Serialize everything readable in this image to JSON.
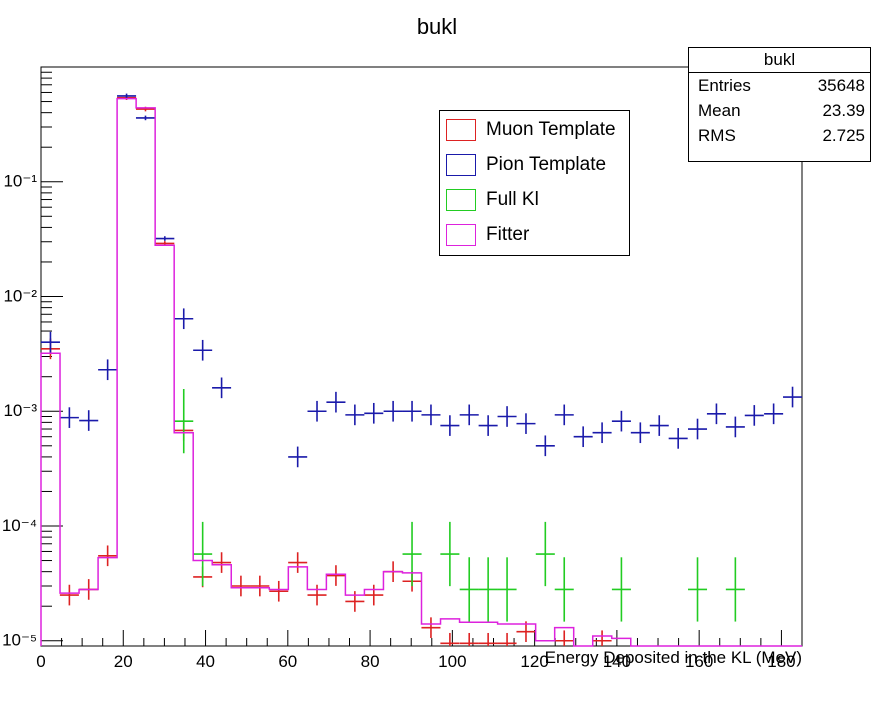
{
  "chart_data": {
    "type": "histogram",
    "title": "bukl",
    "xlabel": "Energy Deposited in the KL (MeV)",
    "ylabel": "",
    "xlim": [
      0,
      185
    ],
    "ylim": [
      9e-06,
      1.0
    ],
    "log_y": true,
    "grid": false,
    "legend_placement": "top-center-right",
    "xticks": [
      0,
      20,
      40,
      60,
      80,
      100,
      120,
      140,
      160,
      180
    ],
    "yticks": [
      {
        "value": 1e-05,
        "label": "10⁻⁵"
      },
      {
        "value": 0.0001,
        "label": "10⁻⁴"
      },
      {
        "value": 0.001,
        "label": "10⁻³"
      },
      {
        "value": 0.01,
        "label": "10⁻²"
      },
      {
        "value": 0.1,
        "label": "10⁻¹"
      }
    ],
    "stats": {
      "title": "bukl",
      "rows": [
        {
          "label": "Entries",
          "value": "35648"
        },
        {
          "label": "Mean",
          "value": "23.39"
        },
        {
          "label": "RMS",
          "value": "2.725"
        }
      ]
    },
    "series": [
      {
        "name": "Muon Template",
        "color": "#dd2222",
        "style": "errorbar",
        "points": [
          [
            2.3,
            0.0035
          ],
          [
            6.9,
            2.5e-05
          ],
          [
            11.6,
            2.8e-05
          ],
          [
            16.2,
            5.5e-05
          ],
          [
            20.8,
            0.54
          ],
          [
            25.4,
            0.43
          ],
          [
            30.1,
            0.029
          ],
          [
            34.7,
            0.00068
          ],
          [
            39.3,
            3.6e-05
          ],
          [
            43.9,
            4.8e-05
          ],
          [
            48.6,
            3e-05
          ],
          [
            53.2,
            3e-05
          ],
          [
            57.8,
            2.7e-05
          ],
          [
            62.4,
            4.8e-05
          ],
          [
            67.1,
            2.5e-05
          ],
          [
            71.7,
            3.7e-05
          ],
          [
            76.3,
            2.2e-05
          ],
          [
            80.9,
            2.5e-05
          ],
          [
            85.6,
            4e-05
          ],
          [
            90.2,
            3.3e-05
          ],
          [
            94.8,
            1.3e-05
          ],
          [
            99.4,
            9.5e-06
          ],
          [
            104.1,
            9.5e-06
          ],
          [
            108.7,
            9.5e-06
          ],
          [
            113.3,
            9.5e-06
          ],
          [
            117.9,
            1.2e-05
          ],
          [
            127.2,
            1e-05
          ],
          [
            136.4,
            1e-05
          ]
        ]
      },
      {
        "name": "Pion Template",
        "color": "#1a1aaa",
        "style": "errorbar",
        "points": [
          [
            2.3,
            0.004
          ],
          [
            6.9,
            0.00088
          ],
          [
            11.6,
            0.00083
          ],
          [
            16.2,
            0.0023
          ],
          [
            20.8,
            0.56
          ],
          [
            25.4,
            0.36
          ],
          [
            30.1,
            0.032
          ],
          [
            34.7,
            0.0064
          ],
          [
            39.3,
            0.0034
          ],
          [
            43.9,
            0.0016
          ],
          [
            62.4,
            0.0004
          ],
          [
            67.1,
            0.001
          ],
          [
            71.7,
            0.0012
          ],
          [
            76.3,
            0.00093
          ],
          [
            80.9,
            0.00096
          ],
          [
            85.6,
            0.001
          ],
          [
            90.2,
            0.001
          ],
          [
            94.8,
            0.00093
          ],
          [
            99.4,
            0.00075
          ],
          [
            104.1,
            0.00093
          ],
          [
            108.7,
            0.00075
          ],
          [
            113.3,
            0.0009
          ],
          [
            117.9,
            0.00078
          ],
          [
            122.6,
            0.0005
          ],
          [
            127.2,
            0.00093
          ],
          [
            131.8,
            0.0006
          ],
          [
            136.4,
            0.00065
          ],
          [
            141.1,
            0.00082
          ],
          [
            145.7,
            0.00065
          ],
          [
            150.3,
            0.00075
          ],
          [
            154.9,
            0.00058
          ],
          [
            159.6,
            0.0007
          ],
          [
            164.2,
            0.00095
          ],
          [
            168.8,
            0.00073
          ],
          [
            173.4,
            0.00092
          ],
          [
            178.1,
            0.00095
          ],
          [
            182.7,
            0.00133
          ]
        ]
      },
      {
        "name": "Full Kl",
        "color": "#22cc22",
        "style": "errorbar",
        "points": [
          [
            34.7,
            0.00082
          ],
          [
            39.3,
            5.7e-05
          ],
          [
            90.2,
            5.7e-05
          ],
          [
            99.4,
            5.7e-05
          ],
          [
            104.1,
            2.8e-05
          ],
          [
            108.7,
            2.8e-05
          ],
          [
            113.3,
            2.8e-05
          ],
          [
            122.6,
            5.7e-05
          ],
          [
            127.2,
            2.8e-05
          ],
          [
            141.1,
            2.8e-05
          ],
          [
            159.6,
            2.8e-05
          ],
          [
            168.8,
            2.8e-05
          ]
        ]
      },
      {
        "name": "Fitter",
        "color": "#dd22dd",
        "style": "step",
        "bin_width": 4.625,
        "values": [
          0.0032,
          2.6e-05,
          2.8e-05,
          5.3e-05,
          0.53,
          0.44,
          0.028,
          0.00065,
          5e-05,
          4.6e-05,
          2.9e-05,
          2.9e-05,
          2.8e-05,
          4.4e-05,
          2.8e-05,
          3.8e-05,
          2.5e-05,
          2.8e-05,
          4e-05,
          3.9e-05,
          1.4e-05,
          1.55e-05,
          1.45e-05,
          1.45e-05,
          1.4e-05,
          1.4e-05,
          1e-05,
          1.3e-05,
          9e-06,
          1.1e-05,
          1.05e-05,
          9e-06,
          9e-06,
          9e-06,
          9e-06,
          9e-06,
          9e-06,
          9e-06,
          9e-06,
          9e-06
        ]
      }
    ]
  }
}
